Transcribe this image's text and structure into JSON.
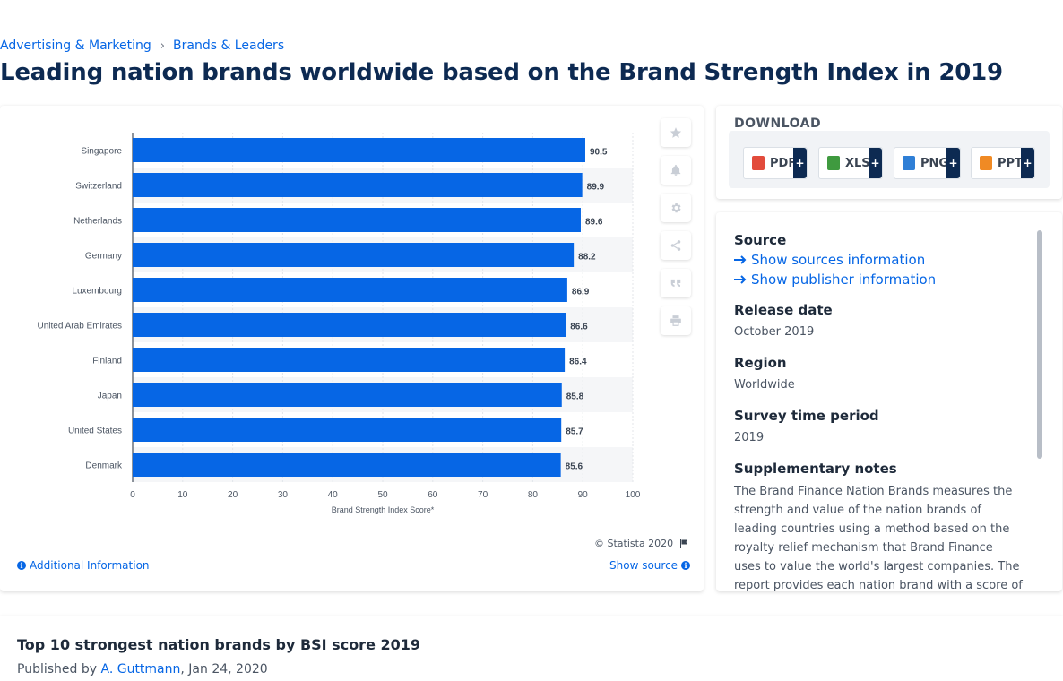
{
  "breadcrumb": {
    "items": [
      "Advertising & Marketing",
      "Brands & Leaders"
    ],
    "separator": "›"
  },
  "page_title": "Leading nation brands worldwide based on the Brand Strength Index in 2019",
  "toolbar": {
    "icons": [
      "star-icon",
      "bell-icon",
      "gear-icon",
      "share-icon",
      "quote-icon",
      "print-icon"
    ]
  },
  "chart_data": {
    "type": "bar",
    "orientation": "horizontal",
    "categories": [
      "Singapore",
      "Switzerland",
      "Netherlands",
      "Germany",
      "Luxembourg",
      "United Arab Emirates",
      "Finland",
      "Japan",
      "United States",
      "Denmark"
    ],
    "values": [
      90.5,
      89.9,
      89.6,
      88.2,
      86.9,
      86.6,
      86.4,
      85.8,
      85.7,
      85.6
    ],
    "value_labels": [
      "90.5",
      "89.9",
      "89.6",
      "88.2",
      "86.9",
      "86.6",
      "86.4",
      "85.8",
      "85.7",
      "85.6"
    ],
    "xticks": [
      "0",
      "10",
      "20",
      "30",
      "40",
      "50",
      "60",
      "70",
      "80",
      "90",
      "100"
    ],
    "xlim": [
      0,
      100
    ],
    "xlabel": "Brand Strength Index Score*",
    "bar_color": "#0666e5",
    "grid": true
  },
  "chart_footer": {
    "copyright": "© Statista 2020",
    "additional_info": "Additional Information",
    "show_source": "Show source"
  },
  "download": {
    "title": "DOWNLOAD",
    "buttons": [
      {
        "label": "PDF",
        "plus": "+",
        "color": "#e24b3b"
      },
      {
        "label": "XLS",
        "plus": "+",
        "color": "#3f9a3f"
      },
      {
        "label": "PNG",
        "plus": "+",
        "color": "#2f7fd6"
      },
      {
        "label": "PPT",
        "plus": "+",
        "color": "#f08a24"
      }
    ]
  },
  "source": {
    "source_label": "Source",
    "show_sources": "Show sources information",
    "show_publisher": "Show publisher information",
    "release_label": "Release date",
    "release_value": "October 2019",
    "region_label": "Region",
    "region_value": "Worldwide",
    "survey_label": "Survey time period",
    "survey_value": "2019",
    "notes_label": "Supplementary notes",
    "notes_value": "The Brand Finance Nation Brands measures the strength and value of the nation brands of leading countries using a method based on the royalty relief mechanism that Brand Finance uses to value the world's largest companies. The report provides each nation brand with a score of its brand strength."
  },
  "related": {
    "title": "Top 10 strongest nation brands by BSI score 2019",
    "published_prefix": "Published by",
    "author": "A. Guttmann",
    "date": ", Jan 24, 2020"
  }
}
